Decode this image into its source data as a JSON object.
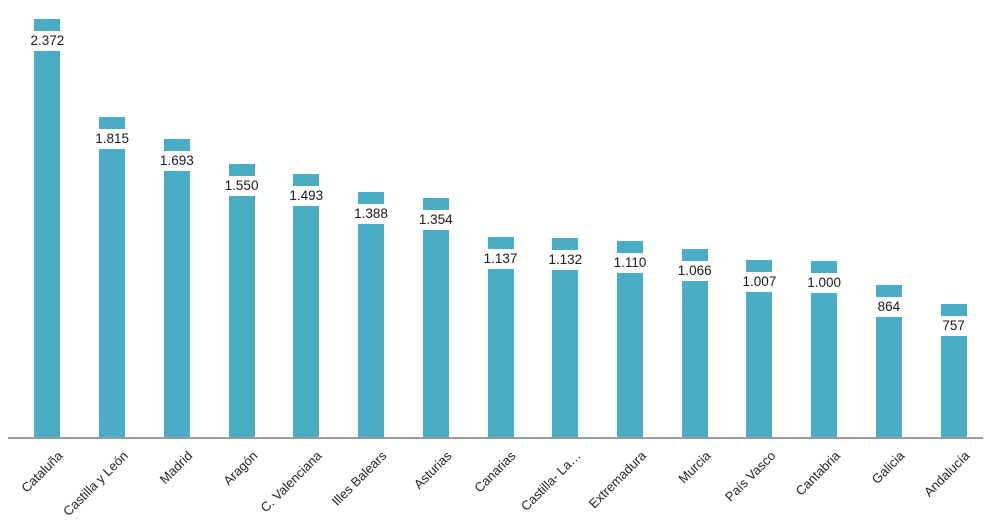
{
  "chart_data": {
    "type": "bar",
    "title": "",
    "xlabel": "",
    "ylabel": "",
    "categories": [
      "Cataluña",
      "Castilla y León",
      "Madrid",
      "Aragón",
      "C. Valenciana",
      "Illes Balears",
      "Asturias",
      "Canarias",
      "Castilla- La…",
      "Extremadura",
      "Murcia",
      "País Vasco",
      "Cantabria",
      "Galicia",
      "Andalucía"
    ],
    "values": [
      2372,
      1815,
      1693,
      1550,
      1493,
      1388,
      1354,
      1137,
      1132,
      1110,
      1066,
      1007,
      1000,
      864,
      757
    ],
    "value_labels": [
      "2.372",
      "1.815",
      "1.693",
      "1.550",
      "1.493",
      "1.388",
      "1.354",
      "1.137",
      "1.132",
      "1.110",
      "1.066",
      "1.007",
      "1.000",
      "864",
      "757"
    ],
    "ylim": [
      0,
      2480
    ],
    "grid": false,
    "legend": "none",
    "value_axis_visible": false,
    "data_labels_position": "inside-top-on-white-strip",
    "category_labels_rotation_deg": -45,
    "bar_color": "#4BACC6",
    "axis_line_color": "#9b9b9b",
    "value_label_color": "#1a1a1a",
    "category_label_color": "#242424",
    "background_color": "#ffffff"
  }
}
